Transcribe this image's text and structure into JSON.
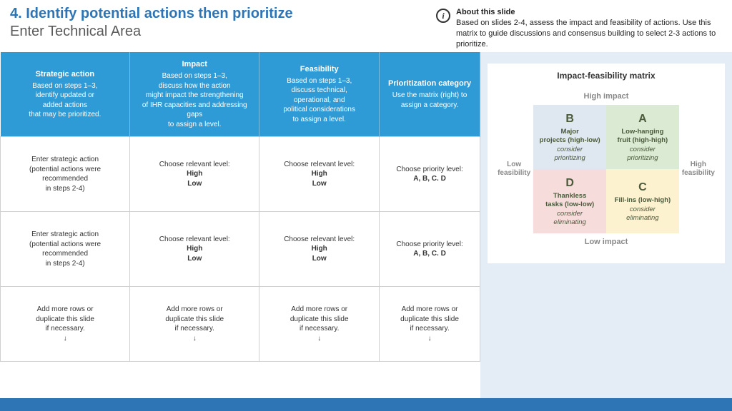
{
  "colors": {
    "accent": "#2e75b6",
    "header_row": "#2e9bd6",
    "right_bg": "#e4edf5",
    "footer": "#2e75b6",
    "quad_A": "#dbead3",
    "quad_B": "#dfe8f0",
    "quad_C": "#fdf2cf",
    "quad_D": "#f7dcdc",
    "quad_text": "#4a5a3a"
  },
  "header": {
    "title": "4. Identify potential actions then prioritize",
    "subtitle": "Enter Technical Area"
  },
  "about": {
    "title": "About this slide",
    "body": "Based on slides 2-4, assess the impact and feasibility of actions. Use this matrix to guide discussions and consensus building to select 2-3 actions to prioritize."
  },
  "table": {
    "headers": [
      {
        "title": "Strategic action",
        "desc": "Based on steps 1–3,\nidentify updated or\nadded actions\nthat may be prioritized."
      },
      {
        "title": "Impact",
        "desc": "Based on steps 1–3,\ndiscuss how the action\nmight impact the strengthening\nof IHR capacities and addressing gaps\nto assign a level."
      },
      {
        "title": "Feasibility",
        "desc": "Based on steps 1–3,\ndiscuss technical,\noperational, and\npolitical considerations\nto assign a level."
      },
      {
        "title": "Prioritization category",
        "desc": "Use the matrix (right) to\nassign a category."
      }
    ],
    "rows": [
      [
        {
          "text": "Enter strategic action\n(potential actions were recommended\nin steps 2-4)"
        },
        {
          "text": "Choose relevant level:",
          "bold": "High\nLow"
        },
        {
          "text": "Choose relevant level:",
          "bold": "High\nLow"
        },
        {
          "text": "Choose priority level:",
          "bold": "A, B, C. D"
        }
      ],
      [
        {
          "text": "Enter strategic action\n(potential actions were recommended\nin steps 2-4)"
        },
        {
          "text": "Choose relevant level:",
          "bold": "High\nLow"
        },
        {
          "text": "Choose relevant level:",
          "bold": "High\nLow"
        },
        {
          "text": "Choose priority level:",
          "bold": "A, B, C. D"
        }
      ],
      [
        {
          "text": "Add more rows or\nduplicate this slide\nif necessary.\n↓"
        },
        {
          "text": "Add more rows or\nduplicate this slide\nif necessary.\n↓"
        },
        {
          "text": "Add more rows or\nduplicate this slide\nif necessary.\n↓"
        },
        {
          "text": "Add more rows or\nduplicate this slide\nif necessary.\n↓"
        }
      ]
    ],
    "col_widths": [
      "27%",
      "27%",
      "25%",
      "21%"
    ]
  },
  "matrix": {
    "title": "Impact-feasibility matrix",
    "top": "High impact",
    "bottom": "Low impact",
    "left": "Low\nfeasibility",
    "right": "High\nfeasibility",
    "quads": {
      "A": {
        "letter": "A",
        "name": "Low-hanging\nfruit (high-high)",
        "hint": "consider\nprioritizing"
      },
      "B": {
        "letter": "B",
        "name": "Major\nprojects (high-low)",
        "hint": "consider\nprioritizing"
      },
      "C": {
        "letter": "C",
        "name": "Fill-ins (low-high)",
        "hint": "consider\neliminating"
      },
      "D": {
        "letter": "D",
        "name": "Thankless\ntasks (low-low)",
        "hint": "consider\neliminating"
      }
    }
  }
}
